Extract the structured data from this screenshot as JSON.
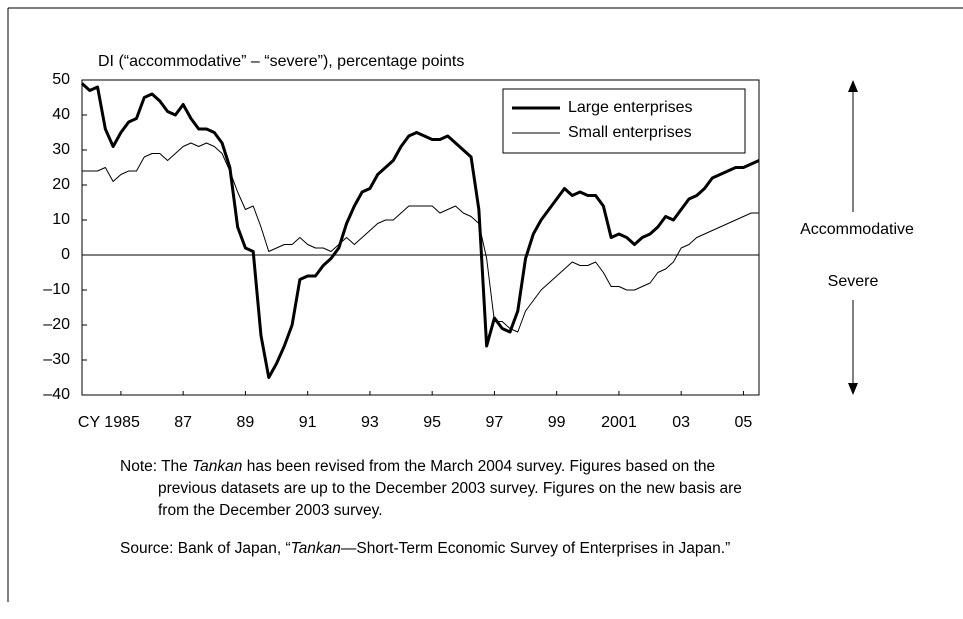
{
  "chart_data": {
    "type": "line",
    "y_label": "DI (“accommodative” – “severe”), percentage points",
    "x": [
      1984.25,
      1984.5,
      1984.75,
      1985,
      1985.25,
      1985.5,
      1985.75,
      1986,
      1986.25,
      1986.5,
      1986.75,
      1987,
      1987.25,
      1987.5,
      1987.75,
      1988,
      1988.25,
      1988.5,
      1988.75,
      1989,
      1989.25,
      1989.5,
      1989.75,
      1990,
      1990.25,
      1990.5,
      1990.75,
      1991,
      1991.25,
      1991.5,
      1991.75,
      1992,
      1992.25,
      1992.5,
      1992.75,
      1993,
      1993.25,
      1993.5,
      1993.75,
      1994,
      1994.25,
      1994.5,
      1994.75,
      1995,
      1995.25,
      1995.5,
      1995.75,
      1996,
      1996.25,
      1996.5,
      1996.75,
      1997,
      1997.25,
      1997.5,
      1997.75,
      1998,
      1998.25,
      1998.5,
      1998.75,
      1999,
      1999.25,
      1999.5,
      1999.75,
      2000,
      2000.25,
      2000.5,
      2000.75,
      2001,
      2001.25,
      2001.5,
      2001.75,
      2002,
      2002.25,
      2002.5,
      2002.75,
      2003,
      2003.25,
      2003.5,
      2003.75,
      2004,
      2004.25,
      2004.5,
      2004.75,
      2005,
      2005.25,
      2005.5,
      2005.75,
      2006
    ],
    "series": [
      {
        "name": "Large enterprises",
        "color": "#000000",
        "width": 3,
        "values": [
          49,
          47,
          48,
          36,
          31,
          35,
          38,
          39,
          45,
          46,
          44,
          41,
          40,
          43,
          39,
          36,
          36,
          35,
          32,
          25,
          8,
          2,
          1,
          -23,
          -35,
          -31,
          -26,
          -20,
          -7,
          -6,
          -6,
          -3,
          -1,
          2,
          9,
          14,
          18,
          19,
          23,
          25,
          27,
          31,
          34,
          35,
          34,
          33,
          33,
          34,
          32,
          30,
          28,
          13,
          -26,
          -18,
          -21,
          -22,
          -16,
          -1,
          6,
          10,
          13,
          16,
          19,
          17,
          18,
          17,
          17,
          14,
          5,
          6,
          5,
          3,
          5,
          6,
          8,
          11,
          10,
          13,
          16,
          17,
          19,
          22,
          23,
          24,
          25,
          25,
          26,
          27
        ]
      },
      {
        "name": "Small enterprises",
        "color": "#000000",
        "width": 1,
        "values": [
          24,
          24,
          24,
          25,
          21,
          23,
          24,
          24,
          28,
          29,
          29,
          27,
          29,
          31,
          32,
          31,
          32,
          31,
          29,
          24,
          18,
          13,
          14,
          8,
          1,
          2,
          3,
          3,
          5,
          3,
          2,
          2,
          1,
          3,
          5,
          3,
          5,
          7,
          9,
          10,
          10,
          12,
          14,
          14,
          14,
          14,
          12,
          13,
          14,
          12,
          11,
          9,
          -1,
          -19,
          -19,
          -21,
          -22,
          -16,
          -13,
          -10,
          -8,
          -6,
          -4,
          -2,
          -3,
          -3,
          -2,
          -5,
          -9,
          -9,
          -10,
          -10,
          -9,
          -8,
          -5,
          -4,
          -2,
          2,
          3,
          5,
          6,
          7,
          8,
          9,
          10,
          11,
          12,
          12
        ]
      }
    ],
    "xlim": [
      1984.25,
      2006
    ],
    "xticks": [
      {
        "value": 1985.5,
        "label": "CY 1985"
      },
      1987.5,
      1989.5,
      1991.5,
      1993.5,
      1995.5,
      1997.5,
      1999.5,
      2001.5,
      2003.5,
      2005.5
    ],
    "xtick_labels": [
      "CY 1985",
      "87",
      "89",
      "91",
      "93",
      "95",
      "97",
      "99",
      "2001",
      "03",
      "05"
    ],
    "ylim": [
      -40,
      50
    ],
    "yticks": [
      {
        "value": -40,
        "label": "–40"
      },
      {
        "value": -30,
        "label": "–30"
      },
      {
        "value": -20,
        "label": "–20"
      },
      {
        "value": -10,
        "label": "–10"
      },
      0,
      10,
      20,
      30,
      40,
      50
    ],
    "legend": "upper right",
    "annotations": [
      "Accommodative",
      "Severe"
    ]
  },
  "note": {
    "label": "Note:",
    "parts": [
      "The ",
      "Tankan",
      " has been revised from the March 2004 survey. Figures based on the previous datasets are up to the December 2003 survey. Figures on the new basis are from the December 2003 survey."
    ]
  },
  "source": {
    "label": "Source:",
    "parts": [
      "Bank of Japan, “",
      "Tankan",
      "—Short-Term Economic Survey of Enterprises in Japan.”"
    ]
  }
}
